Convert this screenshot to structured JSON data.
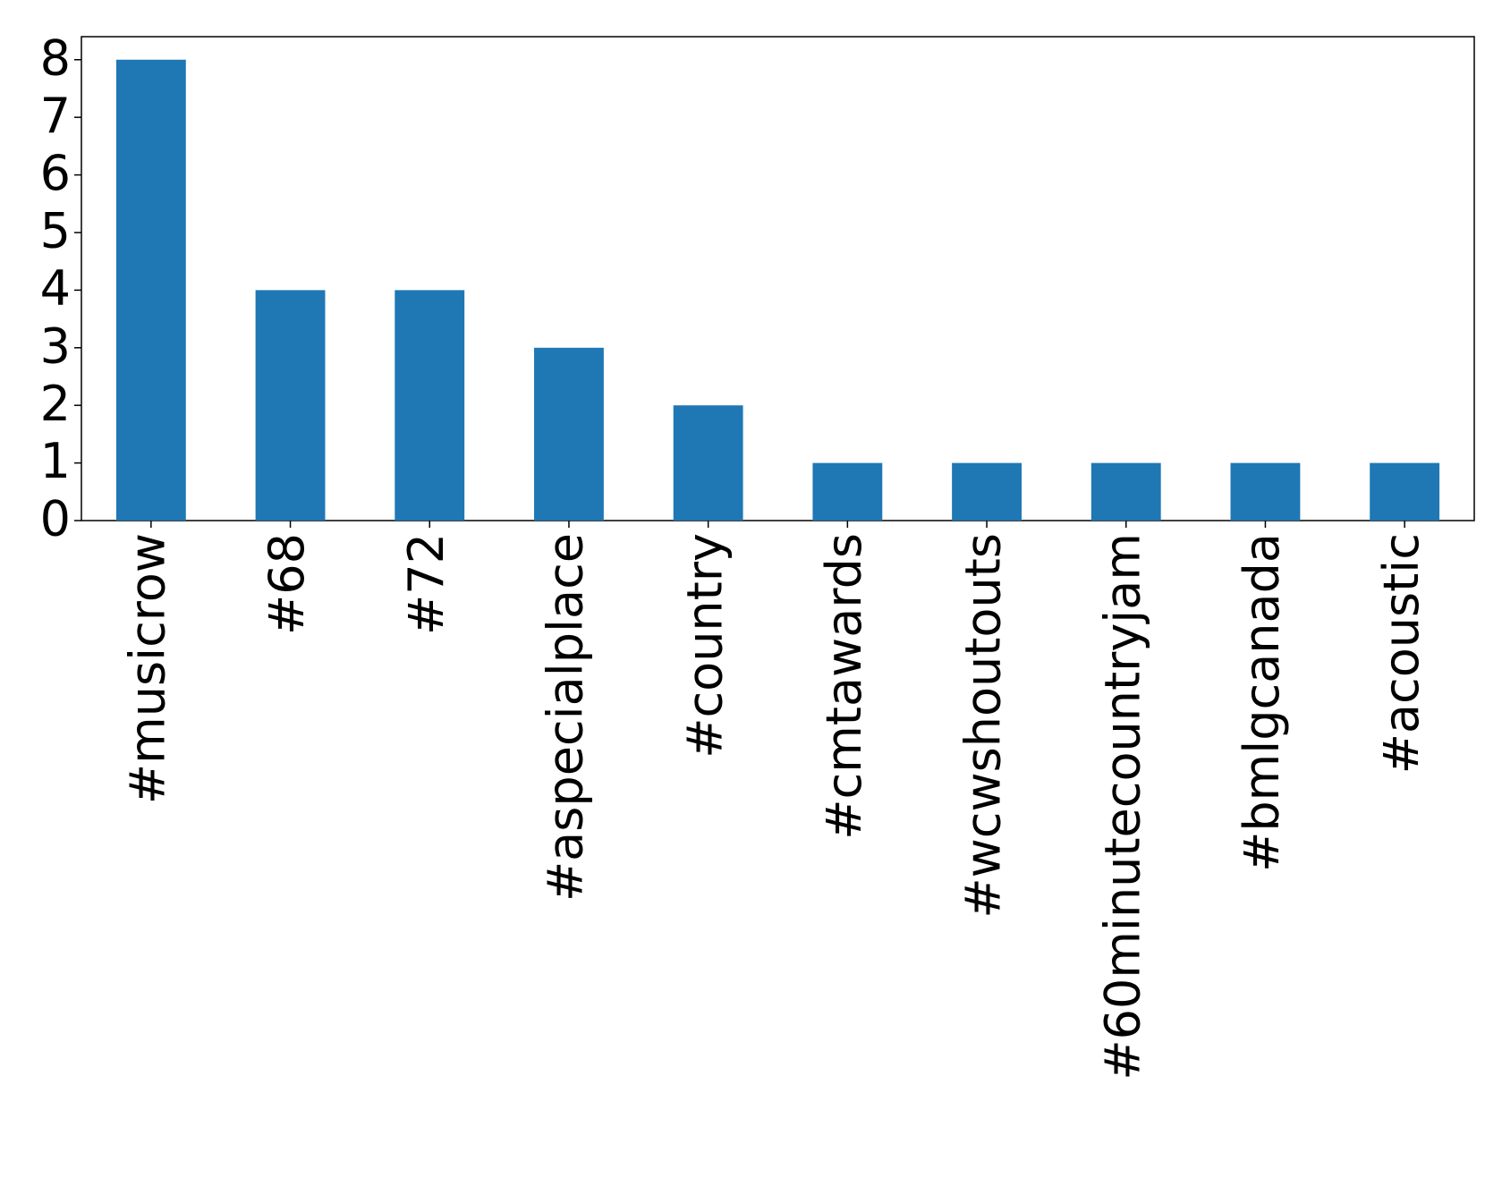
{
  "chart_data": {
    "type": "bar",
    "categories": [
      "#musicrow",
      "#68",
      "#72",
      "#aspecialplace",
      "#country",
      "#cmtawards",
      "#wcwshoutouts",
      "#60minutecountryjam",
      "#bmlgcanada",
      "#acoustic"
    ],
    "values": [
      8,
      4,
      4,
      3,
      2,
      1,
      1,
      1,
      1,
      1
    ],
    "color": "#1f77b4",
    "ylim": [
      0,
      8.4
    ],
    "yticks": [
      0,
      1,
      2,
      3,
      4,
      5,
      6,
      7,
      8
    ],
    "grid": false
  }
}
